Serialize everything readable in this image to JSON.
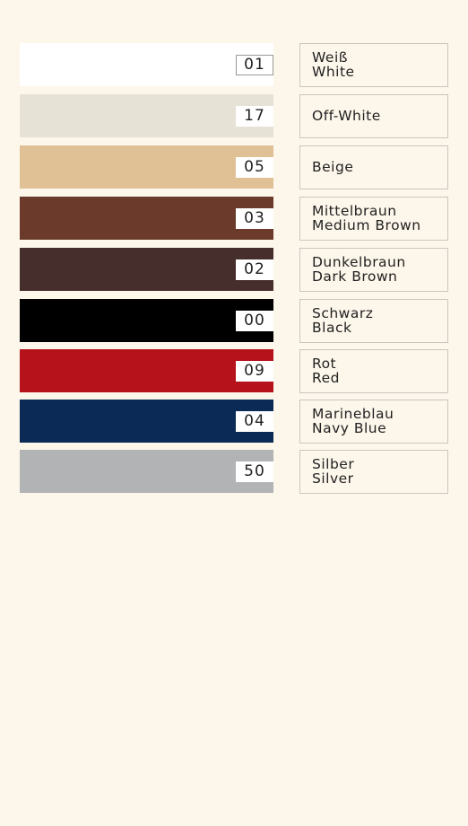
{
  "swatches": [
    {
      "code": "01",
      "lines": [
        "Weiß",
        "White"
      ],
      "color": "#ffffff"
    },
    {
      "code": "17",
      "lines": [
        "Off-White"
      ],
      "color": "#e7e2d6"
    },
    {
      "code": "05",
      "lines": [
        "Beige"
      ],
      "color": "#e0c196"
    },
    {
      "code": "03",
      "lines": [
        "Mittelbraun",
        "Medium Brown"
      ],
      "color": "#6b3a2b"
    },
    {
      "code": "02",
      "lines": [
        "Dunkelbraun",
        "Dark Brown"
      ],
      "color": "#452e2b"
    },
    {
      "code": "00",
      "lines": [
        "Schwarz",
        "Black"
      ],
      "color": "#000000"
    },
    {
      "code": "09",
      "lines": [
        "Rot",
        "Red"
      ],
      "color": "#b5121b"
    },
    {
      "code": "04",
      "lines": [
        "Marineblau",
        "Navy Blue"
      ],
      "color": "#0b2b56"
    },
    {
      "code": "50",
      "lines": [
        "Silber",
        "Silver"
      ],
      "color": "#b2b3b5"
    }
  ]
}
